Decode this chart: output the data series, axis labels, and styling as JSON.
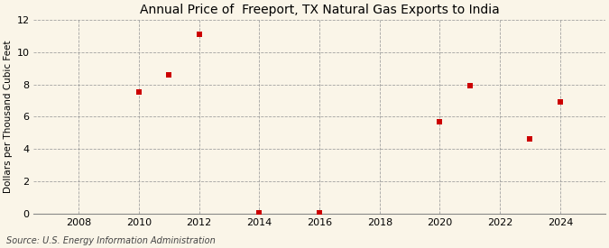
{
  "title": "Annual Price of  Freeport, TX Natural Gas Exports to India",
  "ylabel": "Dollars per Thousand Cubic Feet",
  "source": "Source: U.S. Energy Information Administration",
  "x_values": [
    2010,
    2011,
    2012,
    2014,
    2016,
    2020,
    2021,
    2023,
    2024
  ],
  "y_values": [
    7.55,
    8.6,
    11.1,
    0.03,
    0.03,
    5.7,
    7.9,
    4.6,
    6.9
  ],
  "xlim": [
    2006.5,
    2025.5
  ],
  "ylim": [
    0,
    12
  ],
  "yticks": [
    0,
    2,
    4,
    6,
    8,
    10,
    12
  ],
  "xticks": [
    2008,
    2010,
    2012,
    2014,
    2016,
    2018,
    2020,
    2022,
    2024
  ],
  "background_color": "#faf5e8",
  "marker_color": "#cc0000",
  "marker_size": 4,
  "grid_color": "#999999",
  "title_fontsize": 10,
  "label_fontsize": 7.5,
  "tick_fontsize": 8,
  "source_fontsize": 7
}
